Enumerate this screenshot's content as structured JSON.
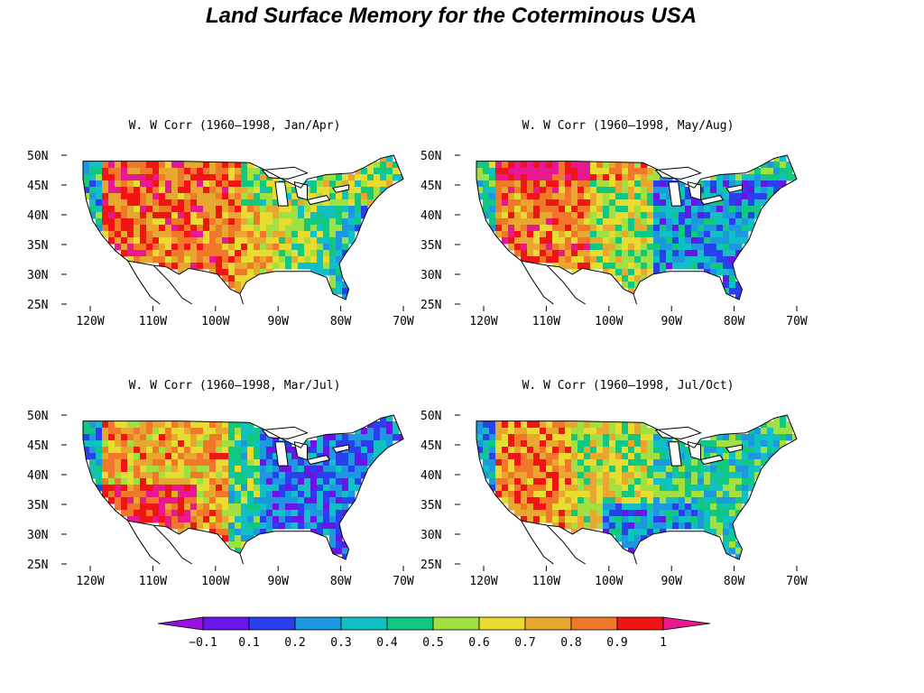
{
  "title": "Land Surface Memory for the Coterminous USA",
  "panels": [
    {
      "title": "W. W Corr (1960–1998, Jan/Apr)",
      "pattern": "west-hot"
    },
    {
      "title": "W. W Corr (1960–1998, May/Aug)",
      "pattern": "southwest-hot"
    },
    {
      "title": "W. W Corr (1960–1998, Mar/Jul)",
      "pattern": "southwest-hot-east-cool"
    },
    {
      "title": "W. W Corr (1960–1998, Jul/Oct)",
      "pattern": "mixed-moderate"
    }
  ],
  "axes": {
    "lat_labels": [
      "50N",
      "45N",
      "40N",
      "35N",
      "30N",
      "25N"
    ],
    "lon_labels": [
      "120W",
      "110W",
      "100W",
      "90W",
      "80W",
      "70W"
    ]
  },
  "colorbar": {
    "labels": [
      "−0.1",
      "0.1",
      "0.2",
      "0.3",
      "0.4",
      "0.5",
      "0.6",
      "0.7",
      "0.8",
      "0.9",
      "1"
    ],
    "colors": [
      "#9a10e0",
      "#6a14e8",
      "#2a40ee",
      "#1c98e0",
      "#10c0c4",
      "#10c880",
      "#a0e040",
      "#e8dc30",
      "#e8a830",
      "#f07828",
      "#f01414",
      "#e81890"
    ]
  }
}
